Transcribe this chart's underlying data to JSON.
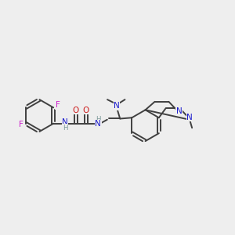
{
  "bg": "#eeeeee",
  "bond_color": "#404040",
  "n_color": "#1a1acc",
  "o_color": "#cc1a1a",
  "f_color": "#cc22cc",
  "h_color": "#7a9898",
  "lw": 1.4,
  "fs": 7.5,
  "fs_sm": 6.2,
  "figsize": [
    3.0,
    3.0
  ],
  "dpi": 100,
  "xlim": [
    0,
    12
  ],
  "ylim": [
    0,
    10
  ]
}
